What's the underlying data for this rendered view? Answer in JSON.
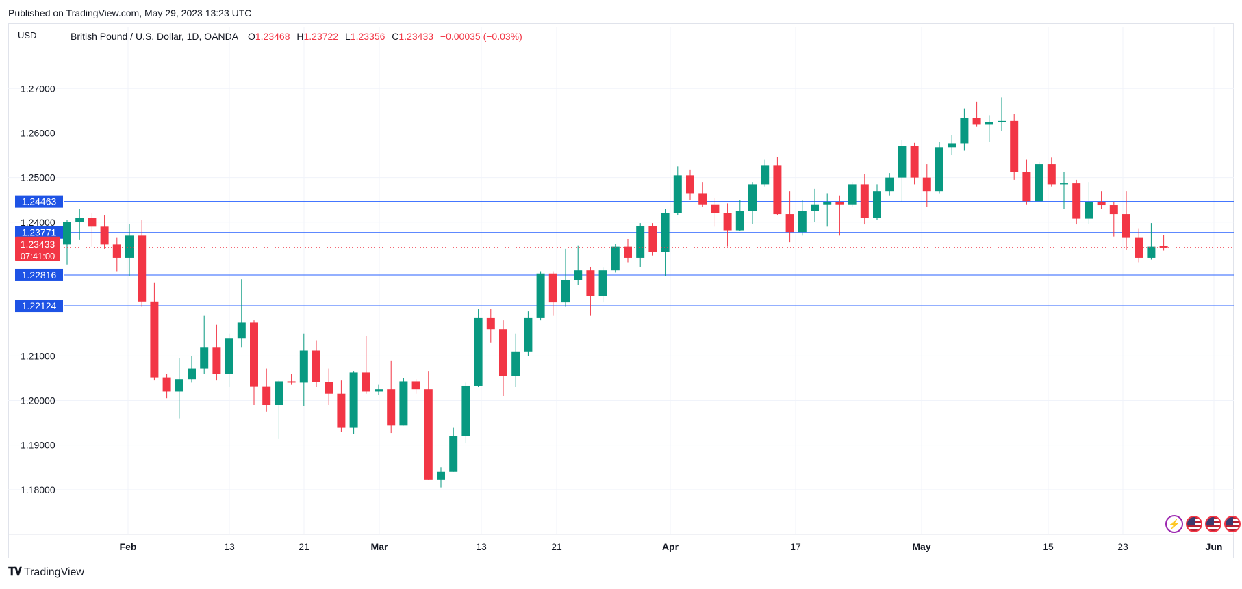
{
  "header": {
    "published": "Published on TradingView.com, May 29, 2023 13:23 UTC"
  },
  "legend": {
    "currency": "USD",
    "symbol": "British Pound / U.S. Dollar, 1D, OANDA",
    "o_label": "O",
    "o_value": "1.23468",
    "h_label": "H",
    "h_value": "1.23722",
    "l_label": "L",
    "l_value": "1.23356",
    "c_label": "C",
    "c_value": "1.23433",
    "change": "−0.00035 (−0.03%)"
  },
  "footer": {
    "brand": "TradingView"
  },
  "icons": [
    "lightning-icon",
    "us-flag-icon",
    "us-flag-icon",
    "us-flag-icon"
  ],
  "colors": {
    "up": "#089981",
    "down": "#f23645",
    "hline": "#2962ff",
    "hline_dark": "#1e53e5",
    "grid": "#f0f3fa",
    "axis_text": "#131722"
  },
  "chart_data": {
    "type": "candlestick",
    "ylim": [
      1.17,
      1.2837
    ],
    "y_ticks": [
      "1.27000",
      "1.26000",
      "1.25000",
      "1.24000",
      "1.21000",
      "1.20000",
      "1.19000",
      "1.18000"
    ],
    "x_ticks": [
      "Feb",
      "13",
      "21",
      "Mar",
      "13",
      "21",
      "Apr",
      "17",
      "May",
      "15",
      "23",
      "Jun"
    ],
    "horizontal_lines": [
      "1.24463",
      "1.23771",
      "1.22816",
      "1.22124"
    ],
    "price_label": "1.23433",
    "countdown": "07:41:00",
    "candles": [
      {
        "o": 1.235,
        "h": 1.2405,
        "l": 1.2305,
        "c": 1.24
      },
      {
        "o": 1.24,
        "h": 1.243,
        "l": 1.236,
        "c": 1.241
      },
      {
        "o": 1.241,
        "h": 1.242,
        "l": 1.2345,
        "c": 1.239
      },
      {
        "o": 1.239,
        "h": 1.2415,
        "l": 1.234,
        "c": 1.235
      },
      {
        "o": 1.235,
        "h": 1.2365,
        "l": 1.229,
        "c": 1.232
      },
      {
        "o": 1.232,
        "h": 1.2395,
        "l": 1.228,
        "c": 1.237
      },
      {
        "o": 1.237,
        "h": 1.2405,
        "l": 1.221,
        "c": 1.2222
      },
      {
        "o": 1.2222,
        "h": 1.2265,
        "l": 1.2045,
        "c": 1.2052
      },
      {
        "o": 1.2052,
        "h": 1.206,
        "l": 1.2005,
        "c": 1.202
      },
      {
        "o": 1.202,
        "h": 1.2095,
        "l": 1.196,
        "c": 1.2048
      },
      {
        "o": 1.2048,
        "h": 1.21,
        "l": 1.204,
        "c": 1.2072
      },
      {
        "o": 1.2072,
        "h": 1.219,
        "l": 1.206,
        "c": 1.212
      },
      {
        "o": 1.212,
        "h": 1.217,
        "l": 1.2045,
        "c": 1.206
      },
      {
        "o": 1.206,
        "h": 1.215,
        "l": 1.203,
        "c": 1.214
      },
      {
        "o": 1.214,
        "h": 1.2272,
        "l": 1.212,
        "c": 1.2175
      },
      {
        "o": 1.2175,
        "h": 1.218,
        "l": 1.199,
        "c": 1.2032
      },
      {
        "o": 1.2032,
        "h": 1.2072,
        "l": 1.1975,
        "c": 1.199
      },
      {
        "o": 1.199,
        "h": 1.2045,
        "l": 1.1915,
        "c": 1.2043
      },
      {
        "o": 1.2043,
        "h": 1.206,
        "l": 1.2035,
        "c": 1.204
      },
      {
        "o": 1.204,
        "h": 1.215,
        "l": 1.1987,
        "c": 1.2112
      },
      {
        "o": 1.2112,
        "h": 1.2135,
        "l": 1.203,
        "c": 1.2042
      },
      {
        "o": 1.2042,
        "h": 1.2072,
        "l": 1.199,
        "c": 1.2015
      },
      {
        "o": 1.2015,
        "h": 1.2045,
        "l": 1.193,
        "c": 1.194
      },
      {
        "o": 1.194,
        "h": 1.2065,
        "l": 1.1925,
        "c": 1.2063
      },
      {
        "o": 1.2063,
        "h": 1.2145,
        "l": 1.2015,
        "c": 1.202
      },
      {
        "o": 1.202,
        "h": 1.2035,
        "l": 1.2012,
        "c": 1.2025
      },
      {
        "o": 1.2025,
        "h": 1.209,
        "l": 1.1927,
        "c": 1.1945
      },
      {
        "o": 1.1945,
        "h": 1.205,
        "l": 1.1945,
        "c": 1.2043
      },
      {
        "o": 1.2043,
        "h": 1.2048,
        "l": 1.2015,
        "c": 1.2025
      },
      {
        "o": 1.2025,
        "h": 1.2065,
        "l": 1.1822,
        "c": 1.1823
      },
      {
        "o": 1.1823,
        "h": 1.185,
        "l": 1.1805,
        "c": 1.184
      },
      {
        "o": 1.184,
        "h": 1.194,
        "l": 1.184,
        "c": 1.192
      },
      {
        "o": 1.192,
        "h": 1.204,
        "l": 1.1905,
        "c": 1.2033
      },
      {
        "o": 1.2033,
        "h": 1.2205,
        "l": 1.203,
        "c": 1.2185
      },
      {
        "o": 1.2185,
        "h": 1.2205,
        "l": 1.213,
        "c": 1.216
      },
      {
        "o": 1.216,
        "h": 1.218,
        "l": 1.201,
        "c": 1.2055
      },
      {
        "o": 1.2055,
        "h": 1.215,
        "l": 1.203,
        "c": 1.211
      },
      {
        "o": 1.211,
        "h": 1.22,
        "l": 1.21,
        "c": 1.2185
      },
      {
        "o": 1.2185,
        "h": 1.229,
        "l": 1.218,
        "c": 1.2285
      },
      {
        "o": 1.2285,
        "h": 1.229,
        "l": 1.219,
        "c": 1.222
      },
      {
        "o": 1.222,
        "h": 1.234,
        "l": 1.221,
        "c": 1.227
      },
      {
        "o": 1.227,
        "h": 1.2348,
        "l": 1.226,
        "c": 1.2292
      },
      {
        "o": 1.2292,
        "h": 1.23,
        "l": 1.219,
        "c": 1.2235
      },
      {
        "o": 1.2235,
        "h": 1.2298,
        "l": 1.222,
        "c": 1.2292
      },
      {
        "o": 1.2292,
        "h": 1.2352,
        "l": 1.2287,
        "c": 1.2345
      },
      {
        "o": 1.2345,
        "h": 1.2362,
        "l": 1.231,
        "c": 1.232
      },
      {
        "o": 1.232,
        "h": 1.2398,
        "l": 1.23,
        "c": 1.2392
      },
      {
        "o": 1.2392,
        "h": 1.2398,
        "l": 1.2325,
        "c": 1.2333
      },
      {
        "o": 1.2333,
        "h": 1.243,
        "l": 1.228,
        "c": 1.242
      },
      {
        "o": 1.242,
        "h": 1.2525,
        "l": 1.2415,
        "c": 1.2505
      },
      {
        "o": 1.2505,
        "h": 1.2518,
        "l": 1.245,
        "c": 1.2465
      },
      {
        "o": 1.2465,
        "h": 1.249,
        "l": 1.2435,
        "c": 1.244
      },
      {
        "o": 1.244,
        "h": 1.2455,
        "l": 1.239,
        "c": 1.242
      },
      {
        "o": 1.242,
        "h": 1.2442,
        "l": 1.2345,
        "c": 1.2382
      },
      {
        "o": 1.2382,
        "h": 1.245,
        "l": 1.238,
        "c": 1.2425
      },
      {
        "o": 1.2425,
        "h": 1.249,
        "l": 1.2395,
        "c": 1.2485
      },
      {
        "o": 1.2485,
        "h": 1.254,
        "l": 1.248,
        "c": 1.2528
      },
      {
        "o": 1.2528,
        "h": 1.2547,
        "l": 1.2415,
        "c": 1.2418
      },
      {
        "o": 1.2418,
        "h": 1.247,
        "l": 1.2355,
        "c": 1.2378
      },
      {
        "o": 1.2378,
        "h": 1.245,
        "l": 1.237,
        "c": 1.2425
      },
      {
        "o": 1.2425,
        "h": 1.2475,
        "l": 1.24,
        "c": 1.244
      },
      {
        "o": 1.244,
        "h": 1.2465,
        "l": 1.239,
        "c": 1.2445
      },
      {
        "o": 1.2445,
        "h": 1.246,
        "l": 1.237,
        "c": 1.244
      },
      {
        "o": 1.244,
        "h": 1.249,
        "l": 1.2435,
        "c": 1.2485
      },
      {
        "o": 1.2485,
        "h": 1.2508,
        "l": 1.2395,
        "c": 1.241
      },
      {
        "o": 1.241,
        "h": 1.2485,
        "l": 1.2405,
        "c": 1.247
      },
      {
        "o": 1.247,
        "h": 1.251,
        "l": 1.246,
        "c": 1.25
      },
      {
        "o": 1.25,
        "h": 1.2585,
        "l": 1.2445,
        "c": 1.257
      },
      {
        "o": 1.257,
        "h": 1.2578,
        "l": 1.2485,
        "c": 1.25
      },
      {
        "o": 1.25,
        "h": 1.253,
        "l": 1.2435,
        "c": 1.247
      },
      {
        "o": 1.247,
        "h": 1.258,
        "l": 1.2465,
        "c": 1.2568
      },
      {
        "o": 1.2568,
        "h": 1.2595,
        "l": 1.255,
        "c": 1.2577
      },
      {
        "o": 1.2577,
        "h": 1.2655,
        "l": 1.256,
        "c": 1.2633
      },
      {
        "o": 1.2633,
        "h": 1.267,
        "l": 1.2615,
        "c": 1.262
      },
      {
        "o": 1.262,
        "h": 1.264,
        "l": 1.258,
        "c": 1.2625
      },
      {
        "o": 1.2625,
        "h": 1.268,
        "l": 1.2605,
        "c": 1.2627
      },
      {
        "o": 1.2627,
        "h": 1.2643,
        "l": 1.2495,
        "c": 1.2512
      },
      {
        "o": 1.2512,
        "h": 1.254,
        "l": 1.244,
        "c": 1.2447
      },
      {
        "o": 1.2447,
        "h": 1.2535,
        "l": 1.2447,
        "c": 1.253
      },
      {
        "o": 1.253,
        "h": 1.2545,
        "l": 1.248,
        "c": 1.2485
      },
      {
        "o": 1.2485,
        "h": 1.2512,
        "l": 1.243,
        "c": 1.2487
      },
      {
        "o": 1.2487,
        "h": 1.2495,
        "l": 1.2395,
        "c": 1.2408
      },
      {
        "o": 1.2408,
        "h": 1.249,
        "l": 1.2395,
        "c": 1.2445
      },
      {
        "o": 1.2445,
        "h": 1.247,
        "l": 1.243,
        "c": 1.2438
      },
      {
        "o": 1.2438,
        "h": 1.2445,
        "l": 1.2368,
        "c": 1.2418
      },
      {
        "o": 1.2418,
        "h": 1.247,
        "l": 1.2338,
        "c": 1.2365
      },
      {
        "o": 1.2365,
        "h": 1.2385,
        "l": 1.231,
        "c": 1.232
      },
      {
        "o": 1.232,
        "h": 1.2398,
        "l": 1.2316,
        "c": 1.2345
      },
      {
        "o": 1.2347,
        "h": 1.2372,
        "l": 1.2336,
        "c": 1.2343
      }
    ]
  }
}
